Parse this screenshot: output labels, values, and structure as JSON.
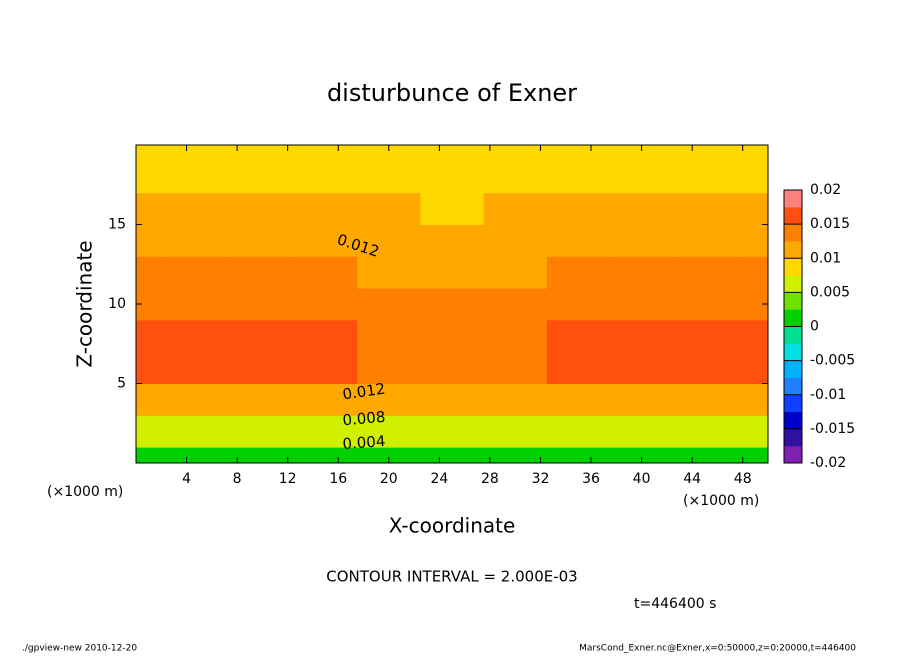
{
  "chart_data": {
    "type": "contour",
    "title": "disturbunce of Exner",
    "x_label": "X-coordinate",
    "y_label": "Z-coordinate",
    "x_unit": "(×1000 m)",
    "y_unit": "(×1000 m)",
    "xlim": [
      0,
      50
    ],
    "ylim": [
      0,
      20
    ],
    "xticks": [
      4,
      8,
      12,
      16,
      20,
      24,
      28,
      32,
      36,
      40,
      44,
      48
    ],
    "yticks": [
      5,
      10,
      15
    ],
    "x": [
      0,
      5,
      10,
      15,
      20,
      25,
      30,
      35,
      40,
      45,
      50
    ],
    "y": [
      0,
      2,
      4,
      6,
      8,
      10,
      12,
      14,
      16,
      18,
      20
    ],
    "z": [
      [
        0.001,
        0.001,
        0.001,
        0.001,
        0.001,
        0.0,
        0.001,
        0.001,
        0.001,
        0.001,
        0.001
      ],
      [
        0.007,
        0.007,
        0.007,
        0.007,
        0.0065,
        0.006,
        0.0065,
        0.007,
        0.007,
        0.007,
        0.007
      ],
      [
        0.0115,
        0.0115,
        0.0115,
        0.0115,
        0.0113,
        0.011,
        0.0113,
        0.0115,
        0.0115,
        0.0115,
        0.0115
      ],
      [
        0.015,
        0.0152,
        0.0155,
        0.0152,
        0.0145,
        0.0135,
        0.014,
        0.015,
        0.0152,
        0.0152,
        0.015
      ],
      [
        0.0152,
        0.0153,
        0.0156,
        0.0153,
        0.0145,
        0.0138,
        0.0145,
        0.0152,
        0.0153,
        0.0152,
        0.015
      ],
      [
        0.0138,
        0.014,
        0.0142,
        0.0138,
        0.0133,
        0.0128,
        0.0133,
        0.0138,
        0.014,
        0.0138,
        0.0138
      ],
      [
        0.0128,
        0.013,
        0.0133,
        0.0128,
        0.0122,
        0.0118,
        0.0122,
        0.0128,
        0.0129,
        0.0128,
        0.0128
      ],
      [
        0.0118,
        0.012,
        0.0122,
        0.0118,
        0.0112,
        0.0108,
        0.0112,
        0.0117,
        0.0118,
        0.0118,
        0.0118
      ],
      [
        0.0105,
        0.0106,
        0.0108,
        0.0105,
        0.0101,
        0.0098,
        0.01,
        0.0104,
        0.0105,
        0.0105,
        0.0105
      ],
      [
        0.0095,
        0.0096,
        0.0097,
        0.0095,
        0.0092,
        0.009,
        0.0092,
        0.0094,
        0.0095,
        0.0095,
        0.0095
      ],
      [
        0.0088,
        0.0089,
        0.009,
        0.0088,
        0.0085,
        0.0083,
        0.0085,
        0.0087,
        0.0088,
        0.0088,
        0.0088
      ]
    ],
    "contour_labels": [
      "0.012",
      "0.012",
      "0.008",
      "0.004"
    ],
    "colorbar": {
      "levels": [
        -0.02,
        -0.0175,
        -0.015,
        -0.0125,
        -0.01,
        -0.0075,
        -0.005,
        -0.0025,
        0,
        0.0025,
        0.005,
        0.0075,
        0.01,
        0.0125,
        0.015,
        0.0175,
        0.02
      ],
      "colors": [
        "#8020b0",
        "#3010a0",
        "#0000c8",
        "#1040ff",
        "#2080ff",
        "#00b0ff",
        "#00e0e0",
        "#00e090",
        "#00d000",
        "#70e000",
        "#d0f000",
        "#ffd800",
        "#ffa800",
        "#ff8000",
        "#ff5010",
        "#ff8080"
      ],
      "ticks": [
        -0.02,
        -0.015,
        -0.01,
        -0.005,
        0,
        0.005,
        0.01,
        0.015,
        0.02
      ],
      "minor_ticks": [
        -0.015,
        -0.01,
        -0.005,
        0,
        0.005,
        0.01,
        0.015
      ]
    },
    "contour_interval": "CONTOUR INTERVAL = 2.000E-03",
    "time": "t=446400 s",
    "footer_left": "./gpview-new  2010-12-20",
    "footer_right": "MarsCond_Exner.nc@Exner,x=0:50000,z=0:20000,t=446400"
  }
}
